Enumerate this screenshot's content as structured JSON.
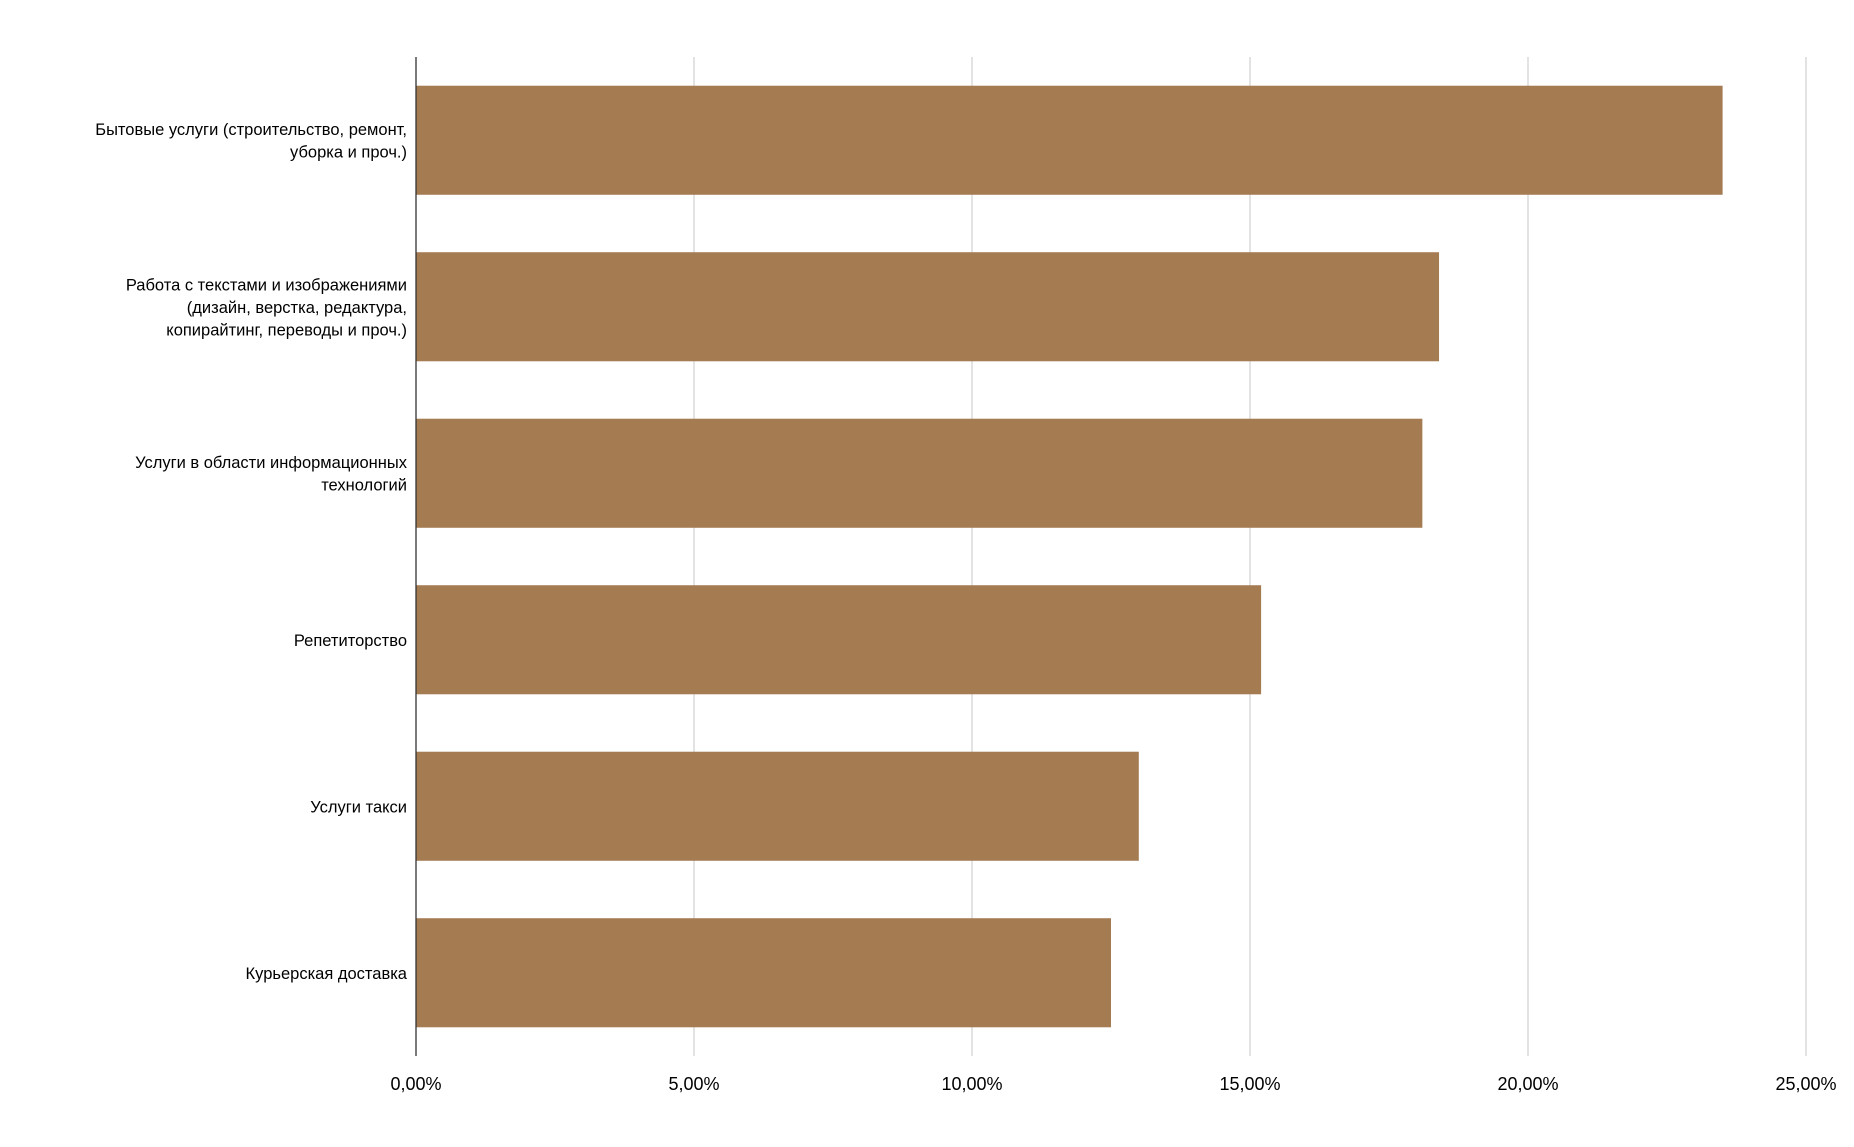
{
  "colors": {
    "background": "#ffffff",
    "bar": "#a57c52",
    "grid": "#d0d0d0",
    "axis": "#333333",
    "text": "#000000"
  },
  "chart_data": {
    "type": "bar",
    "orientation": "horizontal",
    "title": "",
    "xlabel": "",
    "ylabel": "",
    "categories": [
      "Бытовые услуги (строительство, ремонт, уборка и проч.)",
      "Работа с текстами и изображениями (дизайн, верстка, редактура, копирайтинг, переводы и проч.)",
      "Услуги в области информационных технологий",
      "Репетиторство",
      "Услуги такси",
      "Курьерская доставка"
    ],
    "category_label_lines": [
      [
        "Бытовые услуги (строительство, ремонт,",
        "уборка и проч.)"
      ],
      [
        "Работа с текстами и изображениями",
        "(дизайн, верстка, редактура,",
        "копирайтинг, переводы и проч.)"
      ],
      [
        "Услуги в области информационных",
        "технологий"
      ],
      [
        "Репетиторство"
      ],
      [
        "Услуги такси"
      ],
      [
        "Курьерская доставка"
      ]
    ],
    "values": [
      23.5,
      18.4,
      18.1,
      15.2,
      13.0,
      12.5
    ],
    "unit": "%",
    "xlim": [
      0,
      25
    ],
    "ticks": [
      0,
      5,
      10,
      15,
      20,
      25
    ],
    "tick_labels": [
      "0,00%",
      "5,00%",
      "10,00%",
      "15,00%",
      "20,00%",
      "25,00%"
    ],
    "grid": "vertical",
    "legend": "none"
  }
}
